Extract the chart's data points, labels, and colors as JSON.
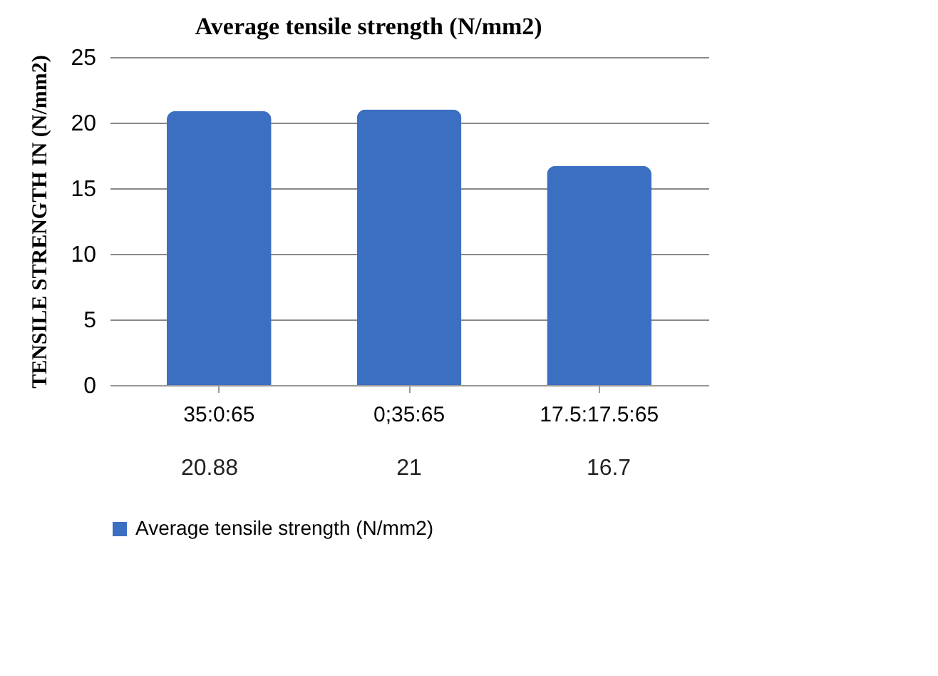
{
  "chart_data": {
    "type": "bar",
    "title": "Average tensile strength (N/mm2)",
    "ylabel": "TENSILE STRENGTH IN (N/mm2)",
    "categories": [
      "35:0:65",
      "0;35:65",
      "17.5:17.5:65"
    ],
    "series": [
      {
        "name": "Average tensile strength (N/mm2)",
        "color": "#3b6fc2",
        "values": [
          20.88,
          21,
          16.7
        ]
      }
    ],
    "ylim": [
      0,
      25
    ],
    "yticks": [
      0,
      5,
      10,
      15,
      20,
      25
    ],
    "grid": "y",
    "data_labels": true,
    "legend": "bottom left"
  }
}
